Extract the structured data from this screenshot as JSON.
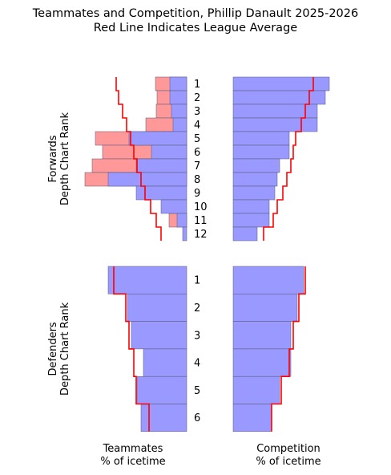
{
  "title_line1": "Teammates and Competition, Phillip Danault 2025-2026",
  "title_line2": "Red Line Indicates League Average",
  "footer": {
    "teammates_line1": "Teammates",
    "teammates_line2": "% of icetime",
    "competition_line1": "Competition",
    "competition_line2": "% of icetime"
  },
  "colors": {
    "blue_bar": "#9999ff",
    "red_bar": "#ff9999",
    "avg_line": "#ff0000",
    "edge": "#555577"
  },
  "chart_data": {
    "type": "bar",
    "orientation": "horizontal",
    "panels": [
      {
        "group": "forwards",
        "ylabel": [
          "Forwards",
          "Depth Chart Rank"
        ],
        "categories": [
          "1",
          "2",
          "3",
          "4",
          "5",
          "6",
          "7",
          "8",
          "9",
          "10",
          "11",
          "12"
        ],
        "teammates": {
          "series": [
            {
              "color": "blue",
              "values": [
                21,
                21,
                19,
                17,
                72,
                44,
                63,
                98,
                63,
                32,
                12,
                5
              ]
            },
            {
              "color": "red",
              "values": [
                39,
                37,
                38,
                51,
                114,
                105,
                118,
                127,
                0,
                0,
                22,
                0
              ]
            }
          ],
          "league_average": [
            88,
            85,
            80,
            75,
            70,
            66,
            62,
            57,
            52,
            45,
            38,
            32
          ]
        },
        "competition": {
          "series": [
            {
              "color": "blue",
              "values": [
                120,
                115,
                105,
                105,
                70,
                70,
                58,
                55,
                52,
                45,
                45,
                30
              ]
            }
          ],
          "league_average": [
            100,
            95,
            90,
            85,
            78,
            75,
            72,
            67,
            62,
            55,
            50,
            38
          ]
        }
      },
      {
        "group": "defenders",
        "ylabel": [
          "Defenders",
          "Depth Chart Rank"
        ],
        "categories": [
          "1",
          "2",
          "3",
          "4",
          "5",
          "6"
        ],
        "teammates": {
          "series": [
            {
              "color": "blue",
              "values": [
                98,
                74,
                69,
                54,
                62,
                57
              ]
            }
          ],
          "league_average": [
            91,
            76,
            72,
            66,
            63,
            47
          ]
        },
        "competition": {
          "series": [
            {
              "color": "blue",
              "values": [
                88,
                80,
                72,
                72,
                58,
                48
              ]
            }
          ],
          "league_average": [
            90,
            82,
            75,
            70,
            60,
            48
          ]
        }
      }
    ],
    "xlabel_left": [
      "Teammates",
      "% of icetime"
    ],
    "xlabel_right": [
      "Competition",
      "% of icetime"
    ],
    "grid": false,
    "legend": "none"
  }
}
